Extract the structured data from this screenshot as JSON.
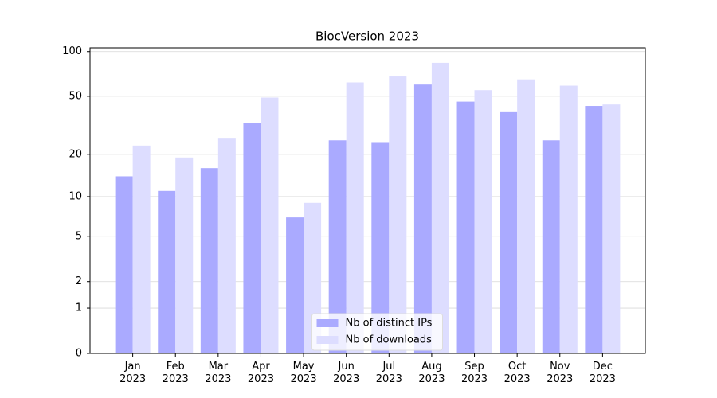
{
  "chart_data": {
    "type": "bar",
    "title": "BiocVersion 2023",
    "categories": [
      "Jan\n2023",
      "Feb\n2023",
      "Mar\n2023",
      "Apr\n2023",
      "May\n2023",
      "Jun\n2023",
      "Jul\n2023",
      "Aug\n2023",
      "Sep\n2023",
      "Oct\n2023",
      "Nov\n2023",
      "Dec\n2023"
    ],
    "series": [
      {
        "name": "Nb of distinct IPs",
        "color": "#aaaaff",
        "values": [
          14,
          11,
          16,
          33,
          7,
          25,
          24,
          60,
          46,
          39,
          25,
          43
        ]
      },
      {
        "name": "Nb of downloads",
        "color": "#ddddff",
        "values": [
          23,
          19,
          26,
          49,
          9,
          62,
          68,
          84,
          55,
          65,
          59,
          44
        ]
      }
    ],
    "yscale": "log1p",
    "ylim": [
      0,
      106
    ],
    "yticks": [
      0,
      1,
      2,
      5,
      10,
      20,
      50,
      100
    ],
    "grid": true,
    "legend": "lower center"
  }
}
